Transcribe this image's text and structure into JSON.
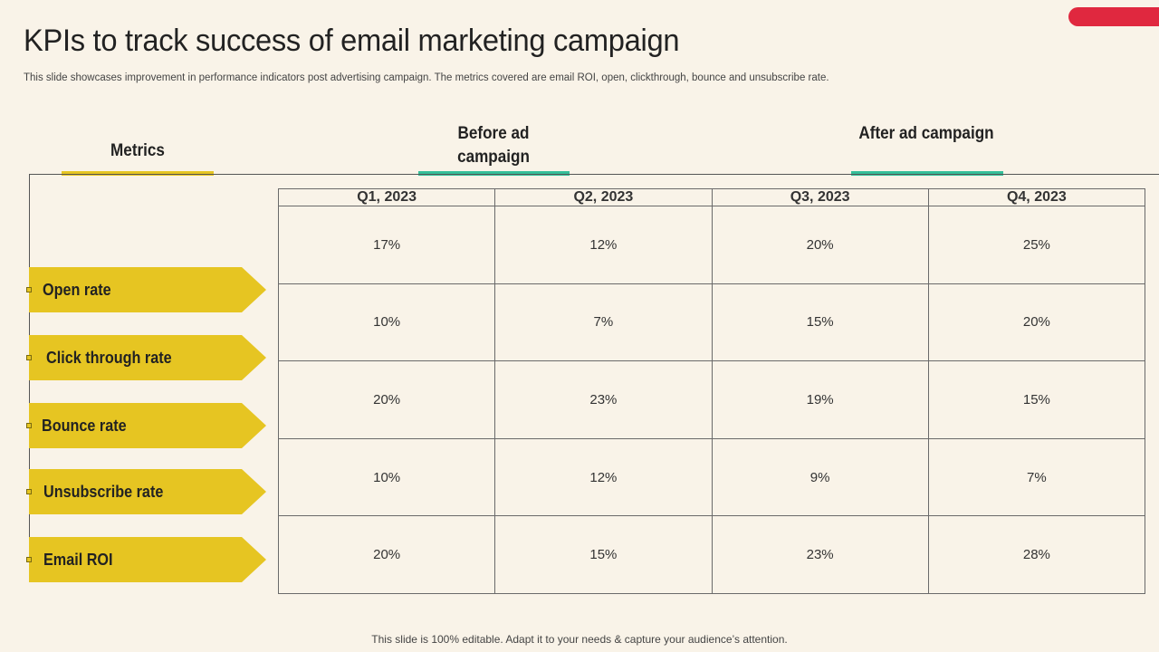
{
  "title": "KPIs to track success of email marketing campaign",
  "subtitle": "This slide showcases improvement in performance indicators post advertising campaign. The metrics covered are email ROI, open, clickthrough, bounce and unsubscribe rate.",
  "headers": {
    "metrics": "Metrics",
    "before": "Before ad campaign",
    "after": "After ad campaign"
  },
  "table": {
    "columns": [
      "Q1, 2023",
      "Q2, 2023",
      "Q3, 2023",
      "Q4, 2023"
    ],
    "rows": [
      {
        "metric": "Open rate",
        "values": [
          "17%",
          "12%",
          "20%",
          "25%"
        ]
      },
      {
        "metric": "Click through rate",
        "values": [
          "10%",
          "7%",
          "15%",
          "20%"
        ]
      },
      {
        "metric": "Bounce rate",
        "values": [
          "20%",
          "23%",
          "19%",
          "15%"
        ]
      },
      {
        "metric": "Unsubscribe rate",
        "values": [
          "10%",
          "12%",
          "9%",
          "7%"
        ]
      },
      {
        "metric": "Email ROI",
        "values": [
          "20%",
          "15%",
          "23%",
          "28%"
        ]
      }
    ]
  },
  "footer": "This slide is 100% editable. Adapt it to your needs & capture your audience’s attention.",
  "colors": {
    "background": "#f9f3e8",
    "yellow": "#e6c522",
    "teal": "#33bf99",
    "red_accent": "#e0283f"
  }
}
